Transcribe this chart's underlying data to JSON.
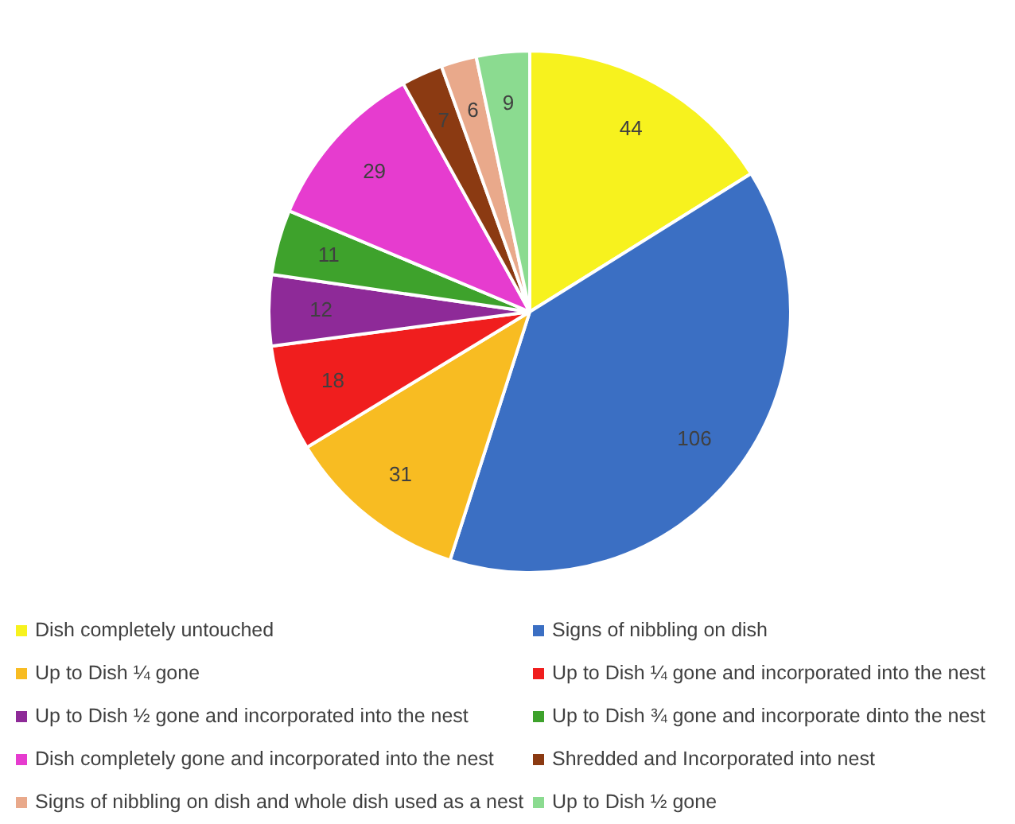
{
  "chart_data": {
    "type": "pie",
    "categories": [
      "Dish completely untouched",
      "Signs of nibbling on dish",
      "Up to Dish ¼ gone",
      "Up to Dish ¼ gone and incorporated into the nest",
      "Up to Dish ½ gone and incorporated into the nest",
      "Up to Dish ¾ gone and incorporate dinto the nest",
      "Dish completely gone and incorporated into the nest",
      "Shredded and Incorporated into nest",
      "Signs of nibbling on dish and whole dish used as a nest",
      "Up to Dish ½ gone"
    ],
    "values": [
      44,
      106,
      31,
      18,
      12,
      11,
      29,
      7,
      6,
      9
    ],
    "colors": [
      "#f7f21e",
      "#3b6fc3",
      "#f8bc22",
      "#f01e1e",
      "#8e2a98",
      "#3ea22c",
      "#e63ccf",
      "#8b3a12",
      "#e9a98b",
      "#8bdb90"
    ],
    "data_labels": true,
    "legend": "bottom"
  }
}
